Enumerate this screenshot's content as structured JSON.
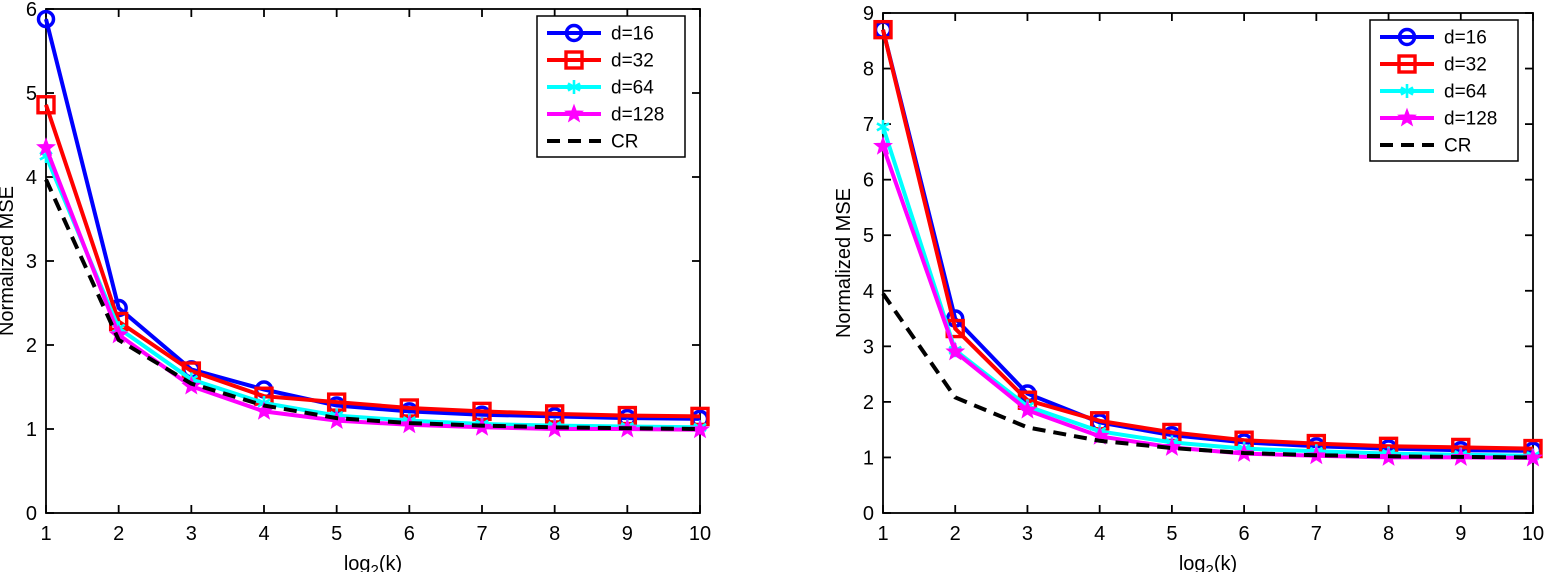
{
  "page": {
    "background": "#ffffff",
    "description_labels": {
      "y_axis": "Normalized MSE",
      "x_axis": "log2(k)"
    }
  },
  "chart_data": [
    {
      "type": "line",
      "title": "",
      "xlabel": "log2(k)",
      "xlabel_parts": {
        "base": "log",
        "sub": "2",
        "rest": "(k)"
      },
      "ylabel": "Normalized MSE",
      "xlim": [
        1,
        10
      ],
      "ylim": [
        0,
        6
      ],
      "xticks": [
        1,
        2,
        3,
        4,
        5,
        6,
        7,
        8,
        9,
        10
      ],
      "yticks": [
        0,
        1,
        2,
        3,
        4,
        5,
        6
      ],
      "grid": false,
      "legend_position": "top-right",
      "x": [
        1,
        2,
        3,
        4,
        5,
        6,
        7,
        8,
        9,
        10
      ],
      "series": [
        {
          "name": "d=16",
          "color": "#0000ff",
          "marker": "circle",
          "dash": "solid",
          "values": [
            5.88,
            2.44,
            1.71,
            1.47,
            1.28,
            1.21,
            1.17,
            1.15,
            1.13,
            1.12
          ]
        },
        {
          "name": "d=32",
          "color": "#ff0000",
          "marker": "square",
          "dash": "solid",
          "values": [
            4.86,
            2.28,
            1.69,
            1.39,
            1.32,
            1.25,
            1.21,
            1.18,
            1.16,
            1.15
          ]
        },
        {
          "name": "d=64",
          "color": "#00ffff",
          "marker": "asterisk",
          "dash": "solid",
          "values": [
            4.25,
            2.2,
            1.59,
            1.31,
            1.16,
            1.1,
            1.06,
            1.04,
            1.03,
            1.02
          ]
        },
        {
          "name": "d=128",
          "color": "#ff00ff",
          "marker": "star",
          "dash": "solid",
          "values": [
            4.35,
            2.12,
            1.51,
            1.21,
            1.1,
            1.05,
            1.02,
            1.0,
            1.0,
            0.99
          ]
        },
        {
          "name": "CR",
          "color": "#000000",
          "marker": "none",
          "dash": "dashed",
          "values": [
            3.97,
            2.06,
            1.54,
            1.28,
            1.13,
            1.07,
            1.04,
            1.02,
            1.01,
            1.0
          ]
        }
      ]
    },
    {
      "type": "line",
      "title": "",
      "xlabel": "log2(k)",
      "xlabel_parts": {
        "base": "log",
        "sub": "2",
        "rest": "(k)"
      },
      "ylabel": "Normalized MSE",
      "xlim": [
        1,
        10
      ],
      "ylim": [
        0,
        9
      ],
      "xticks": [
        1,
        2,
        3,
        4,
        5,
        6,
        7,
        8,
        9,
        10
      ],
      "yticks": [
        0,
        1,
        2,
        3,
        4,
        5,
        6,
        7,
        8,
        9
      ],
      "grid": false,
      "legend_position": "top-right",
      "x": [
        1,
        2,
        3,
        4,
        5,
        6,
        7,
        8,
        9,
        10
      ],
      "series": [
        {
          "name": "d=16",
          "color": "#0000ff",
          "marker": "circle",
          "dash": "solid",
          "values": [
            8.7,
            3.5,
            2.15,
            1.63,
            1.4,
            1.27,
            1.2,
            1.16,
            1.13,
            1.12
          ]
        },
        {
          "name": "d=32",
          "color": "#ff0000",
          "marker": "square",
          "dash": "solid",
          "values": [
            8.7,
            3.32,
            2.03,
            1.66,
            1.45,
            1.31,
            1.25,
            1.2,
            1.18,
            1.16
          ]
        },
        {
          "name": "d=64",
          "color": "#00ffff",
          "marker": "asterisk",
          "dash": "solid",
          "values": [
            6.95,
            2.93,
            1.92,
            1.47,
            1.27,
            1.16,
            1.11,
            1.07,
            1.05,
            1.03
          ]
        },
        {
          "name": "d=128",
          "color": "#ff00ff",
          "marker": "star",
          "dash": "solid",
          "values": [
            6.6,
            2.9,
            1.85,
            1.38,
            1.18,
            1.07,
            1.03,
            1.0,
            1.0,
            0.99
          ]
        },
        {
          "name": "CR",
          "color": "#000000",
          "marker": "none",
          "dash": "dashed",
          "values": [
            3.95,
            2.08,
            1.54,
            1.3,
            1.17,
            1.08,
            1.04,
            1.02,
            1.01,
            1.0
          ]
        }
      ]
    }
  ]
}
